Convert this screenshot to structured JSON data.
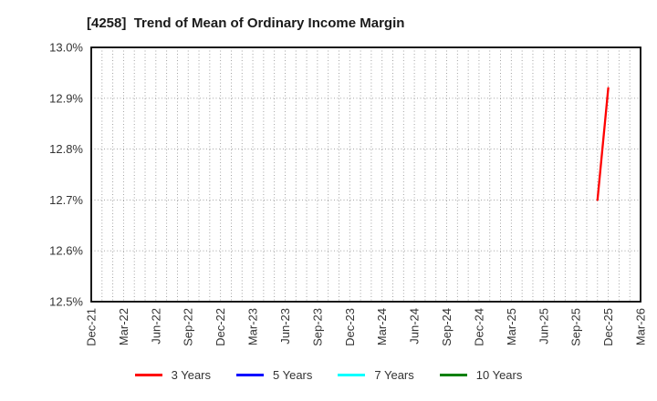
{
  "header": {
    "title": "[4258]  Trend of Mean of Ordinary Income Margin"
  },
  "chart_data": {
    "type": "line",
    "title": "[4258]  Trend of Mean of Ordinary Income Margin",
    "xlabel": "",
    "ylabel": "",
    "ylim": [
      12.5,
      13.0
    ],
    "x_range_months": 51,
    "grid": {
      "style": "dotted",
      "color": "#999999",
      "vertical_spacing": "monthly",
      "horizontal_spacing_percent": 0.1
    },
    "axis_color": "#000000",
    "y_ticks": [
      {
        "value": 13.0,
        "label": "13.0%"
      },
      {
        "value": 12.9,
        "label": "12.9%"
      },
      {
        "value": 12.8,
        "label": "12.8%"
      },
      {
        "value": 12.7,
        "label": "12.7%"
      },
      {
        "value": 12.6,
        "label": "12.6%"
      },
      {
        "value": 12.5,
        "label": "12.5%"
      }
    ],
    "x_ticks": [
      {
        "month_index": 0,
        "label": "Dec-21"
      },
      {
        "month_index": 3,
        "label": "Mar-22"
      },
      {
        "month_index": 6,
        "label": "Jun-22"
      },
      {
        "month_index": 9,
        "label": "Sep-22"
      },
      {
        "month_index": 12,
        "label": "Dec-22"
      },
      {
        "month_index": 15,
        "label": "Mar-23"
      },
      {
        "month_index": 18,
        "label": "Jun-23"
      },
      {
        "month_index": 21,
        "label": "Sep-23"
      },
      {
        "month_index": 24,
        "label": "Dec-23"
      },
      {
        "month_index": 27,
        "label": "Mar-24"
      },
      {
        "month_index": 30,
        "label": "Jun-24"
      },
      {
        "month_index": 33,
        "label": "Sep-24"
      },
      {
        "month_index": 36,
        "label": "Dec-24"
      },
      {
        "month_index": 39,
        "label": "Mar-25"
      },
      {
        "month_index": 42,
        "label": "Jun-25"
      },
      {
        "month_index": 45,
        "label": "Sep-25"
      },
      {
        "month_index": 48,
        "label": "Dec-25"
      },
      {
        "month_index": 51,
        "label": "Mar-26"
      }
    ],
    "legend_position": "bottom-center",
    "series": [
      {
        "name": "3 Years",
        "color": "#ff0000",
        "points": [
          {
            "x_label": "Nov-25",
            "month_index": 47,
            "value": 12.7
          },
          {
            "x_label": "Dec-25",
            "month_index": 48,
            "value": 12.92
          }
        ]
      },
      {
        "name": "5 Years",
        "color": "#0000ff",
        "points": []
      },
      {
        "name": "7 Years",
        "color": "#00ffff",
        "points": []
      },
      {
        "name": "10 Years",
        "color": "#008000",
        "points": []
      }
    ]
  }
}
